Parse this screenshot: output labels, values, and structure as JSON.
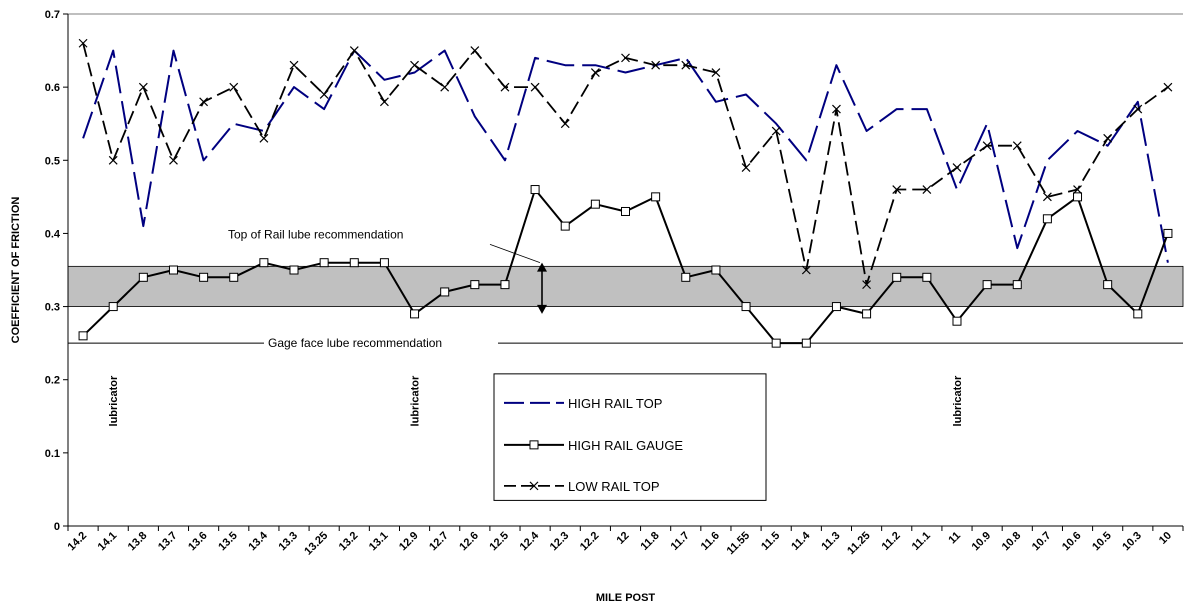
{
  "chart_data": {
    "type": "line",
    "title": "",
    "xlabel": "MILE POST",
    "ylabel": "COEFFICIENT OF FRICTION",
    "ylim": [
      0,
      0.7
    ],
    "yticks": [
      "0",
      "0.1",
      "0.2",
      "0.3",
      "0.4",
      "0.5",
      "0.6",
      "0.7"
    ],
    "grid": false,
    "legend_position": "center",
    "categories": [
      "14.2",
      "14.1",
      "13.8",
      "13.7",
      "13.6",
      "13.5",
      "13.4",
      "13.3",
      "13.25",
      "13.2",
      "13.1",
      "12.9",
      "12.7",
      "12.6",
      "12.5",
      "12.4",
      "12.3",
      "12.2",
      "12",
      "11.8",
      "11.7",
      "11.6",
      "11.55",
      "11.5",
      "11.4",
      "11.3",
      "11.25",
      "11.2",
      "11.1",
      "11",
      "10.9",
      "10.8",
      "10.7",
      "10.6",
      "10.5",
      "10.3",
      "10"
    ],
    "series": [
      {
        "name": "HIGH RAIL TOP",
        "color": "#000080",
        "values": [
          0.53,
          0.65,
          0.41,
          0.65,
          0.5,
          0.55,
          0.54,
          0.6,
          0.57,
          0.65,
          0.61,
          0.62,
          0.65,
          0.56,
          0.5,
          0.64,
          0.63,
          0.63,
          0.62,
          0.63,
          0.64,
          0.58,
          0.59,
          0.55,
          0.5,
          0.63,
          0.54,
          0.57,
          0.57,
          0.46,
          0.55,
          0.38,
          0.5,
          0.54,
          0.52,
          0.58,
          0.36
        ]
      },
      {
        "name": "HIGH RAIL GAUGE",
        "color": "#000000",
        "values": [
          0.26,
          0.3,
          0.34,
          0.35,
          0.34,
          0.34,
          0.36,
          0.35,
          0.36,
          0.36,
          0.36,
          0.29,
          0.32,
          0.33,
          0.33,
          0.46,
          0.41,
          0.44,
          0.43,
          0.45,
          0.34,
          0.35,
          0.3,
          0.25,
          0.25,
          0.3,
          0.29,
          0.34,
          0.34,
          0.28,
          0.33,
          0.33,
          0.42,
          0.45,
          0.33,
          0.29,
          0.4
        ]
      },
      {
        "name": "LOW RAIL TOP",
        "color": "#000000",
        "values": [
          0.66,
          0.5,
          0.6,
          0.5,
          0.58,
          0.6,
          0.53,
          0.63,
          0.59,
          0.65,
          0.58,
          0.63,
          0.6,
          0.65,
          0.6,
          0.6,
          0.55,
          0.62,
          0.64,
          0.63,
          0.63,
          0.62,
          0.49,
          0.54,
          0.35,
          0.57,
          0.33,
          0.46,
          0.46,
          0.49,
          0.52,
          0.52,
          0.45,
          0.46,
          0.53,
          0.57,
          0.6
        ]
      }
    ],
    "bands": [
      {
        "label": "Top of Rail lube recommendation",
        "from": 0.3,
        "to": 0.355,
        "color": "#c0c0c0"
      }
    ],
    "lines": [
      {
        "label": "Gage face lube recommendation",
        "y": 0.25
      }
    ],
    "annotations": [
      {
        "text": "lubricator",
        "category_index": 1
      },
      {
        "text": "lubricator",
        "category_index": 11
      },
      {
        "text": "lubricator",
        "category_index": 29
      }
    ]
  }
}
